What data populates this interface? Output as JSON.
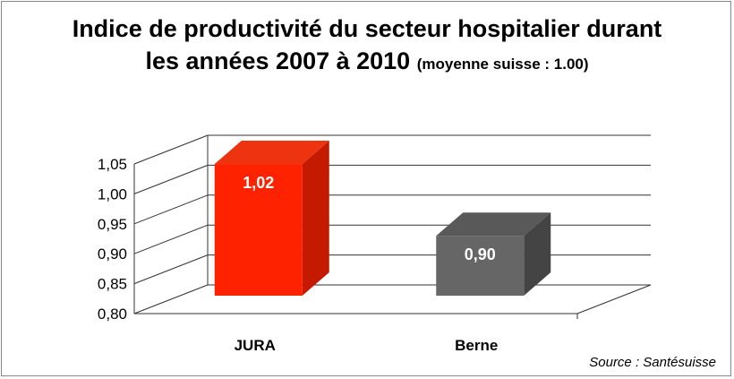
{
  "chart_data": {
    "type": "bar",
    "title": "Indice de productivité du secteur hospitalier durant",
    "title_line2": "les années 2007 à 2010",
    "subtitle": "(moyenne suisse : 1.00)",
    "categories": [
      "JURA",
      "Berne"
    ],
    "values": [
      1.02,
      0.9
    ],
    "data_labels": [
      "1,02",
      "0,90"
    ],
    "y_ticks": [
      "0,80",
      "0,85",
      "0,90",
      "0,95",
      "1,00",
      "1,05"
    ],
    "ylim": [
      0.8,
      1.05
    ],
    "grid": true,
    "three_d": true,
    "bar_colors": [
      "#ff2200",
      "#666666"
    ],
    "source": "Source : Santésuisse"
  }
}
